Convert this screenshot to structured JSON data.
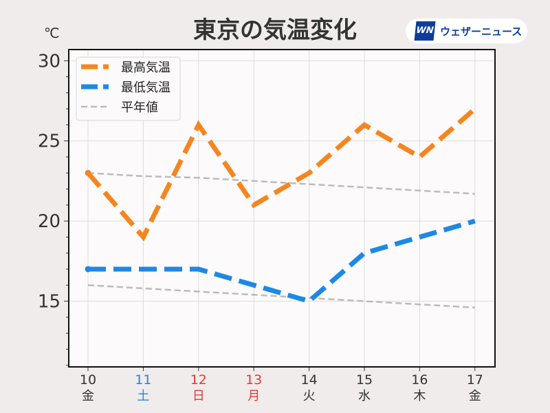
{
  "chart_data": {
    "type": "line",
    "title": "東京の気温変化",
    "unit_label": "℃",
    "logo": {
      "mark": "WN",
      "text": "ウェザーニュース",
      "color": "#0d3d9c"
    },
    "categories": [
      "10",
      "11",
      "12",
      "13",
      "14",
      "15",
      "16",
      "17"
    ],
    "weekdays": [
      "金",
      "土",
      "日",
      "月",
      "火",
      "水",
      "木",
      "金"
    ],
    "weekday_colors": [
      "#333333",
      "#1e88e5",
      "#e53935",
      "#e53935",
      "#333333",
      "#333333",
      "#333333",
      "#333333"
    ],
    "yticks": [
      15,
      20,
      25,
      30
    ],
    "ylim": [
      10.9,
      30.7
    ],
    "grid": true,
    "legend_position": "top-left",
    "series": [
      {
        "name": "最高気温",
        "color": "#f5861f",
        "style": "dashed",
        "values": [
          23,
          19,
          26,
          21,
          23,
          26,
          24,
          27
        ]
      },
      {
        "name": "最低気温",
        "color": "#1e88e5",
        "style": "dashed",
        "values": [
          17,
          17,
          17,
          16,
          15,
          18,
          19,
          20
        ]
      },
      {
        "name": "平年値",
        "color": "#bbbbbb",
        "style": "dashed-thin",
        "values": [
          23,
          22.8,
          22.7,
          22.5,
          22.3,
          22.1,
          21.9,
          21.7
        ]
      },
      {
        "name": "",
        "color": "#bbbbbb",
        "style": "dashed-thin",
        "values": [
          16,
          15.8,
          15.6,
          15.4,
          15.2,
          15,
          14.8,
          14.6
        ]
      }
    ]
  }
}
